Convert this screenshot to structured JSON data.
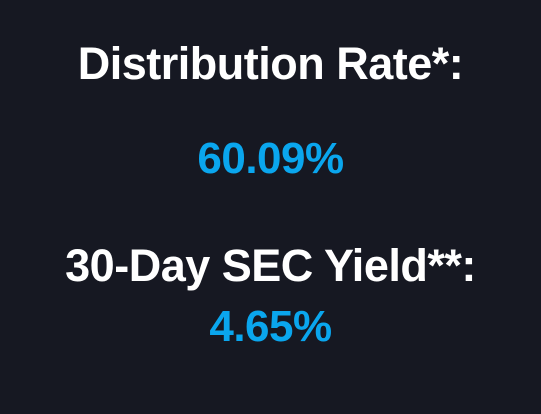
{
  "stats": {
    "distribution_rate": {
      "label": "Distribution Rate*:",
      "value": "60.09%"
    },
    "sec_yield": {
      "label": "30-Day SEC Yield**:",
      "value": "4.65%"
    }
  },
  "colors": {
    "background": "#161822",
    "label_text": "#ffffff",
    "value_accent": "#0aa6ee"
  }
}
